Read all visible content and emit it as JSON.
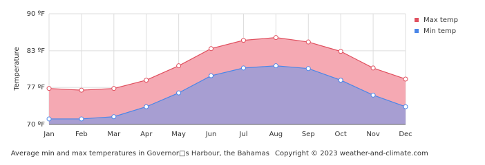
{
  "chart_data": {
    "type": "area",
    "y_label": "Temperature",
    "caption": "Average min and max temperatures in Governor□s Harbour, the Bahamas",
    "copyright": "Copyright © 2023  weather-and-climate.com",
    "categories": [
      "Jan",
      "Feb",
      "Mar",
      "Apr",
      "May",
      "Jun",
      "Jul",
      "Aug",
      "Sep",
      "Oct",
      "Nov",
      "Dec"
    ],
    "series": [
      {
        "name": "Max temp",
        "color": "#e0505f",
        "fill": "#f5a9b3",
        "values": [
          76.5,
          76.2,
          76.5,
          78.0,
          80.6,
          83.7,
          85.2,
          85.7,
          84.9,
          83.2,
          80.2,
          78.2
        ]
      },
      {
        "name": "Min temp",
        "color": "#4a86e8",
        "fill": "#a79ed2",
        "values": [
          71.0,
          71.0,
          71.4,
          73.2,
          75.7,
          78.8,
          80.2,
          80.6,
          80.1,
          78.0,
          75.3,
          73.2
        ]
      }
    ],
    "ylim": [
      70,
      90
    ],
    "yticks": [
      {
        "value": 70,
        "label": "70 ºF"
      },
      {
        "value": 76.7,
        "label": "77 ºF"
      },
      {
        "value": 83.3,
        "label": "83 ºF"
      },
      {
        "value": 90,
        "label": "90 ºF"
      }
    ],
    "grid": true
  }
}
